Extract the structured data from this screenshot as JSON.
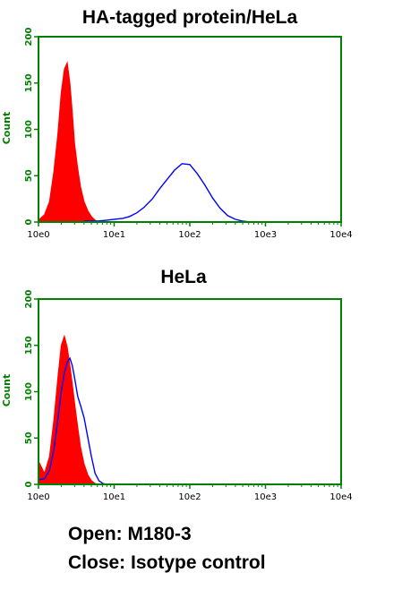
{
  "colors": {
    "frame": "#008000",
    "filled_series": "#ff0000",
    "open_series": "#0000ff",
    "text": "#000000"
  },
  "legend": {
    "line1": "Open: M180-3",
    "line2": "Close: Isotype control"
  },
  "chart_data": [
    {
      "type": "area",
      "title": "HA-tagged  protein/HeLa",
      "xlabel": "",
      "ylabel": "Count",
      "x_scale": "log",
      "xlim": [
        1,
        10000
      ],
      "ylim": [
        0,
        200
      ],
      "x_ticks": [
        "10e0",
        "10e1",
        "10e2",
        "10e3",
        "10e4"
      ],
      "y_ticks": [
        "0",
        "50",
        "100",
        "150",
        "200"
      ],
      "grid": false,
      "series": [
        {
          "name": "Close",
          "style": "filled",
          "x": [
            1.0,
            1.2,
            1.4,
            1.6,
            1.8,
            2.0,
            2.2,
            2.4,
            2.6,
            2.8,
            3.0,
            3.3,
            3.6,
            4.0,
            4.5,
            5.0,
            5.6,
            6.3
          ],
          "y": [
            2,
            8,
            22,
            55,
            95,
            140,
            165,
            172,
            150,
            118,
            85,
            58,
            38,
            22,
            12,
            6,
            2,
            0
          ]
        },
        {
          "name": "Open",
          "style": "line",
          "x": [
            4.0,
            6.0,
            8.0,
            10.0,
            13.0,
            16.0,
            20.0,
            25.0,
            32.0,
            40.0,
            50.0,
            63.0,
            79.0,
            100.0,
            126.0,
            158.0,
            200.0,
            251.0,
            316.0,
            398.0,
            501.0,
            631.0
          ],
          "y": [
            1,
            1,
            2,
            3,
            4,
            6,
            10,
            16,
            25,
            36,
            46,
            56,
            63,
            62,
            52,
            40,
            26,
            15,
            7,
            3,
            1,
            0
          ]
        }
      ]
    },
    {
      "type": "area",
      "title": "HeLa",
      "xlabel": "",
      "ylabel": "Count",
      "x_scale": "log",
      "xlim": [
        1,
        10000
      ],
      "ylim": [
        0,
        200
      ],
      "x_ticks": [
        "10e0",
        "10e1",
        "10e2",
        "10e3",
        "10e4"
      ],
      "y_ticks": [
        "0",
        "50",
        "100",
        "150",
        "200"
      ],
      "grid": false,
      "series": [
        {
          "name": "Close",
          "style": "filled",
          "x": [
            1.0,
            1.2,
            1.4,
            1.6,
            1.8,
            2.0,
            2.2,
            2.4,
            2.6,
            2.8,
            3.0,
            3.3,
            3.6,
            4.0,
            4.5,
            5.0,
            5.6,
            6.3
          ],
          "y": [
            25,
            12,
            30,
            70,
            115,
            150,
            160,
            148,
            128,
            108,
            88,
            62,
            40,
            22,
            10,
            4,
            1,
            0
          ]
        },
        {
          "name": "Open",
          "style": "line",
          "x": [
            1.0,
            1.2,
            1.4,
            1.6,
            1.8,
            2.0,
            2.2,
            2.4,
            2.6,
            2.8,
            3.0,
            3.3,
            3.6,
            4.0,
            4.5,
            5.0,
            5.6,
            6.3,
            7.1,
            7.9
          ],
          "y": [
            5,
            6,
            15,
            38,
            70,
            100,
            120,
            132,
            136,
            128,
            115,
            95,
            85,
            72,
            50,
            30,
            12,
            4,
            1,
            0
          ]
        }
      ]
    }
  ]
}
